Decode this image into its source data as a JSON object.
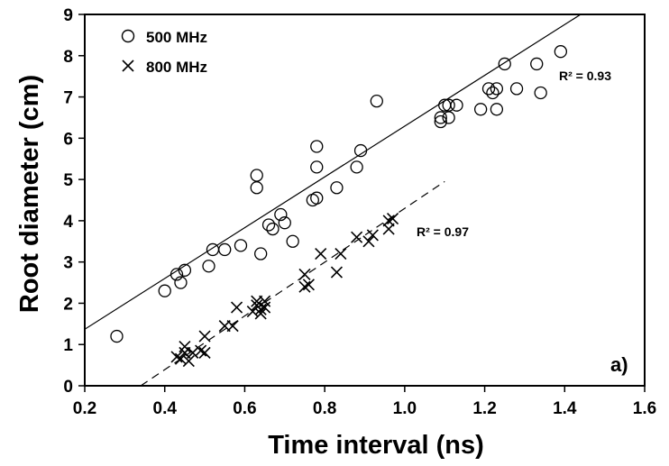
{
  "chart_data": {
    "type": "scatter",
    "title": "",
    "xlabel": "Time interval (ns)",
    "ylabel": "Root diameter (cm)",
    "xlim": [
      0.2,
      1.6
    ],
    "ylim": [
      0,
      9
    ],
    "xticks": [
      "0.2",
      "0.4",
      "0.6",
      "0.8",
      "1.0",
      "1.2",
      "1.4",
      "1.6"
    ],
    "yticks": [
      "0",
      "1",
      "2",
      "3",
      "4",
      "5",
      "6",
      "7",
      "8",
      "9"
    ],
    "grid": false,
    "legend_position": "top-left",
    "panel_label": "a)",
    "series": [
      {
        "name": "500 MHz",
        "marker": "open-circle",
        "r2_label": "R² = 0.93",
        "fit": {
          "style": "solid",
          "x": [
            0.2,
            1.44
          ],
          "y": [
            1.37,
            9.0
          ]
        },
        "points": [
          [
            0.28,
            1.2
          ],
          [
            0.4,
            2.3
          ],
          [
            0.43,
            2.7
          ],
          [
            0.44,
            2.5
          ],
          [
            0.45,
            2.8
          ],
          [
            0.51,
            2.9
          ],
          [
            0.52,
            3.3
          ],
          [
            0.55,
            3.3
          ],
          [
            0.59,
            3.4
          ],
          [
            0.63,
            5.1
          ],
          [
            0.63,
            4.8
          ],
          [
            0.64,
            3.2
          ],
          [
            0.66,
            3.9
          ],
          [
            0.67,
            3.8
          ],
          [
            0.69,
            4.15
          ],
          [
            0.7,
            3.95
          ],
          [
            0.72,
            3.5
          ],
          [
            0.77,
            4.5
          ],
          [
            0.78,
            4.55
          ],
          [
            0.78,
            5.8
          ],
          [
            0.78,
            5.3
          ],
          [
            0.83,
            4.8
          ],
          [
            0.88,
            5.3
          ],
          [
            0.89,
            5.7
          ],
          [
            0.93,
            6.9
          ],
          [
            1.09,
            6.4
          ],
          [
            1.09,
            6.5
          ],
          [
            1.1,
            6.8
          ],
          [
            1.11,
            6.8
          ],
          [
            1.11,
            6.5
          ],
          [
            1.13,
            6.8
          ],
          [
            1.19,
            6.7
          ],
          [
            1.21,
            7.2
          ],
          [
            1.22,
            7.1
          ],
          [
            1.23,
            7.2
          ],
          [
            1.23,
            6.7
          ],
          [
            1.25,
            7.8
          ],
          [
            1.28,
            7.2
          ],
          [
            1.33,
            7.8
          ],
          [
            1.34,
            7.1
          ],
          [
            1.39,
            8.1
          ]
        ]
      },
      {
        "name": "800 MHz",
        "marker": "x",
        "r2_label": "R² = 0.97",
        "fit": {
          "style": "dashed",
          "x": [
            0.34,
            1.1
          ],
          "y": [
            0.0,
            4.95
          ]
        },
        "points": [
          [
            0.43,
            0.7
          ],
          [
            0.44,
            0.65
          ],
          [
            0.45,
            0.8
          ],
          [
            0.45,
            0.95
          ],
          [
            0.46,
            0.6
          ],
          [
            0.47,
            0.8
          ],
          [
            0.49,
            0.85
          ],
          [
            0.5,
            0.8
          ],
          [
            0.5,
            1.2
          ],
          [
            0.55,
            1.45
          ],
          [
            0.57,
            1.45
          ],
          [
            0.58,
            1.9
          ],
          [
            0.62,
            1.8
          ],
          [
            0.63,
            1.95
          ],
          [
            0.63,
            2.05
          ],
          [
            0.64,
            1.75
          ],
          [
            0.64,
            1.85
          ],
          [
            0.65,
            1.9
          ],
          [
            0.65,
            2.05
          ],
          [
            0.75,
            2.4
          ],
          [
            0.75,
            2.7
          ],
          [
            0.76,
            2.45
          ],
          [
            0.79,
            3.2
          ],
          [
            0.83,
            2.75
          ],
          [
            0.84,
            3.2
          ],
          [
            0.88,
            3.6
          ],
          [
            0.91,
            3.5
          ],
          [
            0.92,
            3.65
          ],
          [
            0.96,
            3.8
          ],
          [
            0.96,
            4.0
          ],
          [
            0.97,
            4.05
          ]
        ]
      }
    ]
  }
}
